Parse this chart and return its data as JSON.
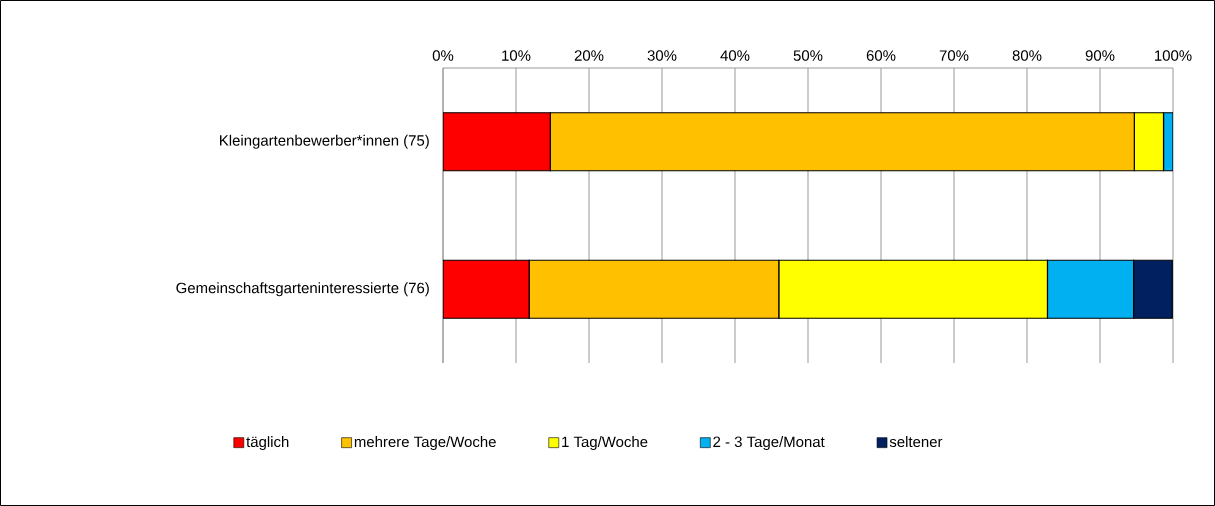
{
  "chart_data": {
    "type": "bar",
    "orientation": "horizontal",
    "stacked": true,
    "categories": [
      "Kleingartenbewerber*innen (75)",
      "Gemeinschaftsgarteninteressierte (76)"
    ],
    "series": [
      {
        "name": "täglich",
        "color": "#ff0000",
        "values": [
          14.7,
          11.8
        ]
      },
      {
        "name": "mehrere Tage/Woche",
        "color": "#ffc000",
        "values": [
          80.0,
          34.2
        ]
      },
      {
        "name": "1 Tag/Woche",
        "color": "#ffff00",
        "values": [
          4.0,
          36.8
        ]
      },
      {
        "name": "2 - 3 Tage/Monat",
        "color": "#00b0f0",
        "values": [
          1.3,
          11.8
        ]
      },
      {
        "name": "seltener",
        "color": "#002060",
        "values": [
          0,
          5.3
        ]
      }
    ],
    "xlim": [
      0,
      100
    ],
    "xticks": [
      {
        "value": 0,
        "label": "0%"
      },
      {
        "value": 10,
        "label": "10%"
      },
      {
        "value": 20,
        "label": "20%"
      },
      {
        "value": 30,
        "label": "30%"
      },
      {
        "value": 40,
        "label": "40%"
      },
      {
        "value": 50,
        "label": "50%"
      },
      {
        "value": 60,
        "label": "60%"
      },
      {
        "value": 70,
        "label": "70%"
      },
      {
        "value": 80,
        "label": "80%"
      },
      {
        "value": 90,
        "label": "90%"
      },
      {
        "value": 100,
        "label": "100%"
      }
    ],
    "grid": "x",
    "legend": "bottom"
  }
}
